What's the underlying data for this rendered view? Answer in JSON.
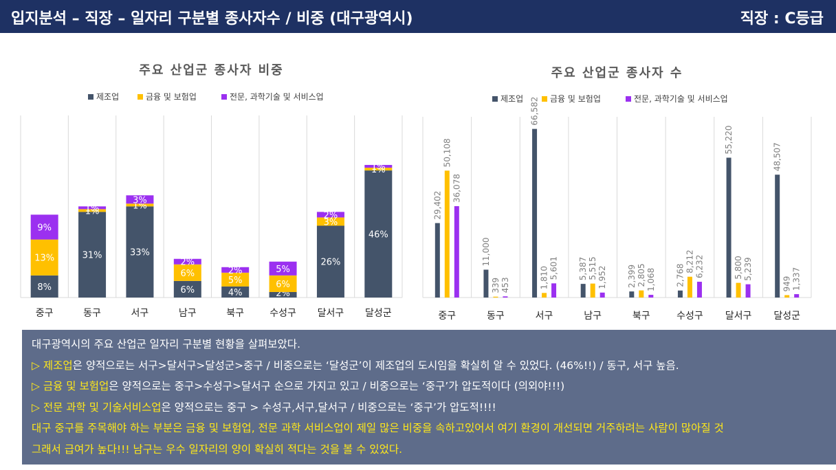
{
  "header": {
    "title": "입지분석 – 직장 – 일자리 구분별 종사자수 / 비중 (대구광역시)",
    "grade": "직장 : C등급"
  },
  "colors": {
    "header_bg": "#1e3163",
    "manufacturing": "#44546a",
    "finance": "#ffc000",
    "professional": "#9b30f0",
    "summary_bg": "#5e6c8a",
    "highlight": "#ffe81a"
  },
  "chart_data": [
    {
      "type": "bar",
      "stacked": true,
      "title": "주요 산업군 종사자 비중",
      "categories": [
        "중구",
        "동구",
        "서구",
        "남구",
        "북구",
        "수성구",
        "달서구",
        "달성군"
      ],
      "series": [
        {
          "name": "제조업",
          "values": [
            8,
            31,
            33,
            6,
            4,
            2,
            26,
            46
          ],
          "labels": [
            "8%",
            "31%",
            "33%",
            "6%",
            "4%",
            "2%",
            "26%",
            "46%"
          ]
        },
        {
          "name": "금융 및 보험업",
          "values": [
            13,
            1,
            1,
            6,
            5,
            6,
            3,
            1
          ],
          "labels": [
            "13%",
            "1%",
            "1%",
            "6%",
            "5%",
            "6%",
            "3%",
            "1%"
          ]
        },
        {
          "name": "전문, 과학기술 및 서비스업",
          "values": [
            9,
            1,
            3,
            2,
            2,
            5,
            2,
            1
          ],
          "labels": [
            "9%",
            "1%",
            "3%",
            "2%",
            "2%",
            "5%",
            "2%",
            "1%"
          ]
        }
      ],
      "legend": "top",
      "grid": "vertical"
    },
    {
      "type": "bar",
      "title": "주요 산업군 종사자 수",
      "categories": [
        "중구",
        "동구",
        "서구",
        "남구",
        "북구",
        "수성구",
        "달서구",
        "달성군"
      ],
      "series": [
        {
          "name": "제조업",
          "values": [
            29402,
            11000,
            66582,
            5387,
            2399,
            2768,
            55220,
            48507
          ],
          "labels": [
            "29,402",
            "11,000",
            "66,582",
            "5,387",
            "2,399",
            "2,768",
            "55,220",
            "48,507"
          ]
        },
        {
          "name": "금융 및 보험업",
          "values": [
            50108,
            339,
            1810,
            5515,
            2805,
            8212,
            5800,
            949
          ],
          "labels": [
            "50,108",
            "339",
            "1,810",
            "5,515",
            "2,805",
            "8,212",
            "5,800",
            "949"
          ]
        },
        {
          "name": "전문, 과학기술 및 서비스업",
          "values": [
            36078,
            453,
            5601,
            1952,
            1068,
            6232,
            5239,
            1337
          ],
          "labels": [
            "36,078",
            "453",
            "5,601",
            "1,952",
            "1,068",
            "6,232",
            "5,239",
            "1,337"
          ]
        }
      ],
      "legend": "top",
      "grid": "vertical"
    }
  ],
  "summary": {
    "intro": "대구광역시의 주요 산업군 일자리 구분별 현황을 살펴보았다.",
    "line1_prefix": "▷ 제조업",
    "line1_rest": "은 양적으로는 서구>달서구>달성군>중구  / 비중으로는 ‘달성군’이 제조업의 도시임을 확실히 알 수 있었다. (46%!!) / 동구, 서구 높음.",
    "line2_prefix": "▷ 금융 및 보험업",
    "line2_rest": "은  양적으로는 중구>수성구>달서구 순으로 가지고 있고 / 비중으로는 ‘중구’가 압도적이다 (의외야!!!)",
    "line3_prefix": "▷ 전문 과학 및 기술서비스업",
    "line3_rest": "은 양적으로는 중구 > 수성구,서구,달서구 / 비중으로는 ‘중구’가 압도적!!!!",
    "conclusion1": "대구 중구를 주목해야 하는 부분은 금융 및 보험업, 전문 과학 서비스업이 제일 많은 비중을 속하고있어서 여기 환경이 개선되면 거주하려는 사람이 많아질 것",
    "conclusion2": "그래서 급여가 높다!!! 남구는 우수 일자리의 양이 확실히 적다는 것을 볼 수 있었다."
  }
}
